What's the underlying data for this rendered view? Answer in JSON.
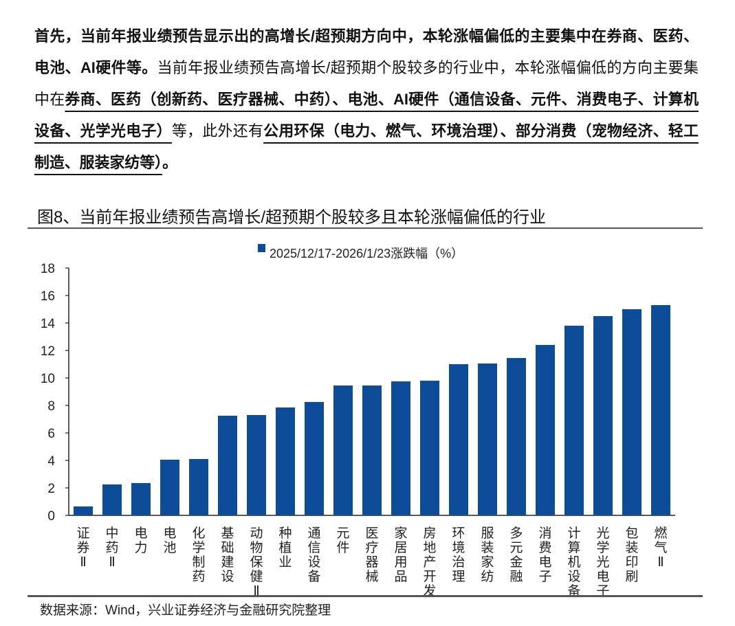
{
  "paragraph": {
    "segments": [
      {
        "text": "首先，当前年报业绩预告显示出的高增长/超预期方向中，本轮涨幅偏低的主要集中在券商、医药、电池、AI硬件等。",
        "bold": true,
        "underline": false
      },
      {
        "text": "当前年报业绩预告高增长/超预期个股较多的行业中，本轮涨幅偏低的方向主要集中在",
        "bold": false,
        "underline": false
      },
      {
        "text": "券商、医药（创新药、医疗器械、中药）、电池、AI硬件（通信设备、元件、消费电子、计算机设备、光学光电子）",
        "bold": true,
        "underline": true
      },
      {
        "text": "等，此外还有",
        "bold": false,
        "underline": false
      },
      {
        "text": "公用环保（电力、燃气、环境治理）、部分消费（宠物经济、轻工制造、服装家纺等）",
        "bold": true,
        "underline": true
      },
      {
        "text": "。",
        "bold": true,
        "underline": false
      }
    ]
  },
  "figure_title": "图8、当前年报业绩预告高增长/超预期个股较多且本轮涨幅偏低的行业",
  "source": "数据来源：Wind，兴业证券经济与金融研究院整理",
  "chart_data": {
    "type": "bar",
    "categories": [
      "证券Ⅱ",
      "中药Ⅱ",
      "电力",
      "电池",
      "化学制药",
      "基础建设",
      "动物保健Ⅱ",
      "种植业",
      "通信设备",
      "元件",
      "医疗器械",
      "家居用品",
      "房地产开发",
      "环境治理",
      "服装家纺",
      "多元金融",
      "消费电子",
      "计算机设备",
      "光学光电子",
      "包装印刷",
      "燃气Ⅱ"
    ],
    "series": [
      {
        "name": "2025/12/17-2026/1/23涨跌幅（%）",
        "values": [
          0.65,
          2.25,
          2.35,
          4.05,
          4.1,
          7.25,
          7.3,
          7.85,
          8.25,
          9.45,
          9.45,
          9.75,
          9.8,
          11.0,
          11.05,
          11.45,
          12.4,
          13.8,
          14.5,
          15.0,
          15.3
        ]
      }
    ],
    "yticks": [
      0,
      2,
      4,
      6,
      8,
      10,
      12,
      14,
      16,
      18
    ],
    "ylim": [
      0,
      18
    ],
    "grid": false,
    "legend_position": "top-center",
    "color": "#0d4c98"
  }
}
